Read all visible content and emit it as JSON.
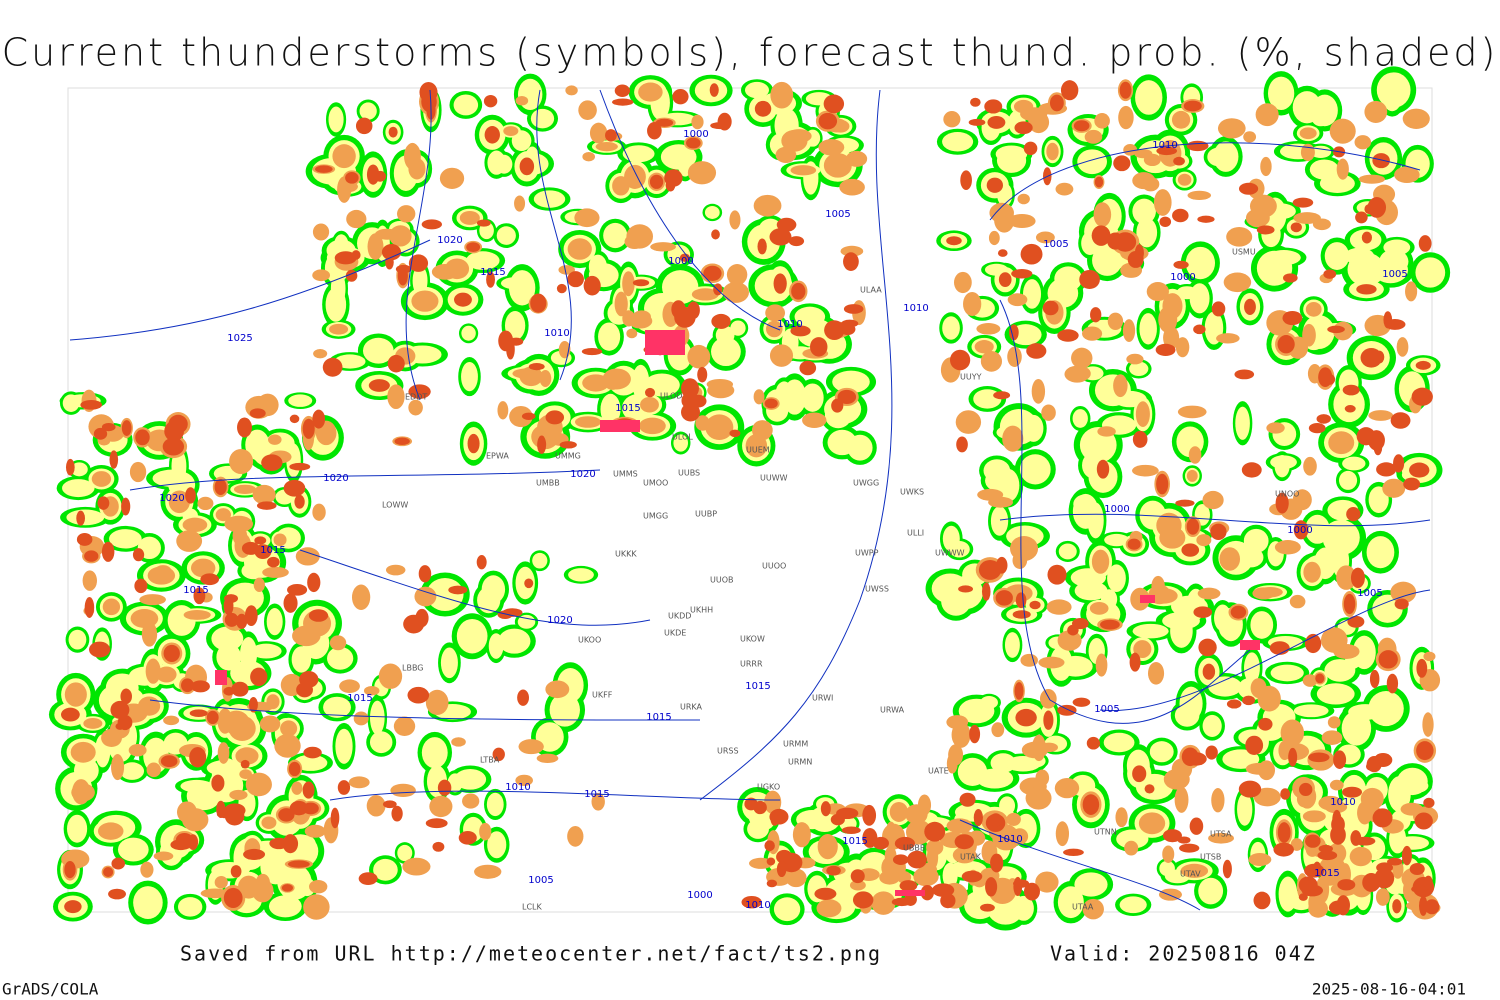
{
  "title": "Current thunderstorms (symbols), forecast thund. prob. (%, shaded)",
  "footer": {
    "source": "Saved from URL http://meteocenter.net/fact/ts2.png",
    "valid": "Valid: 20250816 04Z",
    "software": "GrADS/COLA",
    "timestamp": "2025-08-16-04:01"
  },
  "isobar_labels": [
    1000,
    1005,
    1000,
    1010,
    1010,
    1010,
    1015,
    1020,
    1015,
    1025,
    1020,
    1020,
    1020,
    1015,
    1015,
    1020,
    1015,
    1015,
    1015,
    1010,
    1015,
    1005,
    1000,
    1010,
    1015,
    1010,
    1005,
    1000,
    1000,
    1005,
    1005,
    1000,
    1005,
    1010,
    1010,
    1015
  ],
  "stations": [
    "ULOL",
    "ULOD",
    "UUEM",
    "UUWW",
    "UUBS",
    "UMMS",
    "UMOO",
    "UMBB",
    "EPWA",
    "UMMG",
    "UMGG",
    "UUBP",
    "UKKK",
    "UUOB",
    "UUOO",
    "UKHH",
    "UKDD",
    "UKDE",
    "UKOO",
    "UKOW",
    "UKFF",
    "URRR",
    "URKA",
    "UWGG",
    "UWKS",
    "UWPP",
    "UWSS",
    "UWWW",
    "URWA",
    "URWI",
    "URMM",
    "URMN",
    "URSS",
    "UGKO",
    "UBBB",
    "UATE",
    "UTAK",
    "UTNN",
    "UTSA",
    "UTSB",
    "UTAV",
    "UTAA",
    "UNOO",
    "USMU",
    "UUYY",
    "ULLI",
    "ULAA",
    "EDDT",
    "LOWW",
    "LBBG",
    "LTBA",
    "LCLK"
  ]
}
